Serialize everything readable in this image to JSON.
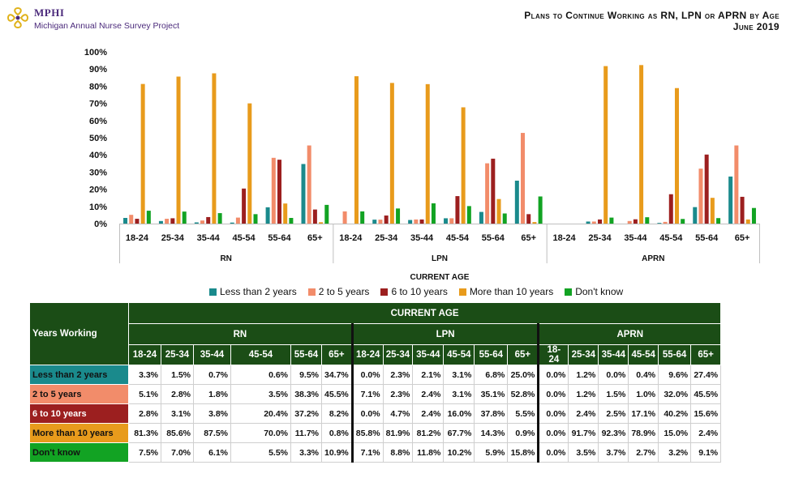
{
  "header": {
    "logo_name": "MPHI",
    "logo_subtitle": "Michigan Annual Nurse Survey Project",
    "title_line1": "Plans to Continue Working as RN, LPN or APRN by Age",
    "title_line2": "June 2019"
  },
  "colors": {
    "series": [
      "#1a8a8c",
      "#f28c6a",
      "#9c1f1f",
      "#e89b1c",
      "#12a323"
    ],
    "table_header_bg": "#1b4d16",
    "gridline": "#bfbfbf"
  },
  "chart_data": {
    "type": "bar",
    "xlabel": "CURRENT AGE",
    "ylabel": "",
    "ylim": [
      0,
      100
    ],
    "yticks": [
      "0%",
      "10%",
      "20%",
      "30%",
      "40%",
      "50%",
      "60%",
      "70%",
      "80%",
      "90%",
      "100%"
    ],
    "grid": false,
    "legend_position": "bottom",
    "groups": [
      {
        "name": "RN",
        "categories": [
          "18-24",
          "25-34",
          "35-44",
          "45-54",
          "55-64",
          "65+"
        ]
      },
      {
        "name": "LPN",
        "categories": [
          "18-24",
          "25-34",
          "35-44",
          "45-54",
          "55-64",
          "65+"
        ]
      },
      {
        "name": "APRN",
        "categories": [
          "18-24",
          "25-34",
          "35-44",
          "45-54",
          "55-64",
          "65+"
        ]
      }
    ],
    "series": [
      {
        "name": "Less than 2 years",
        "values": [
          [
            3.3,
            1.5,
            0.7,
            0.6,
            9.5,
            34.7
          ],
          [
            0.0,
            2.3,
            2.1,
            3.1,
            6.8,
            25.0
          ],
          [
            0.0,
            1.2,
            0.0,
            0.4,
            9.6,
            27.4
          ]
        ]
      },
      {
        "name": "2 to 5 years",
        "values": [
          [
            5.1,
            2.8,
            1.8,
            3.5,
            38.3,
            45.5
          ],
          [
            7.1,
            2.3,
            2.4,
            3.1,
            35.1,
            52.8
          ],
          [
            0.0,
            1.2,
            1.5,
            1.0,
            32.0,
            45.5
          ]
        ]
      },
      {
        "name": "6 to 10 years",
        "values": [
          [
            2.8,
            3.1,
            3.8,
            20.4,
            37.2,
            8.2
          ],
          [
            0.0,
            4.7,
            2.4,
            16.0,
            37.8,
            5.5
          ],
          [
            0.0,
            2.4,
            2.5,
            17.1,
            40.2,
            15.6
          ]
        ]
      },
      {
        "name": "More than 10 years",
        "values": [
          [
            81.3,
            85.6,
            87.5,
            70.0,
            11.7,
            0.8
          ],
          [
            85.8,
            81.9,
            81.2,
            67.7,
            14.3,
            0.9
          ],
          [
            0.0,
            91.7,
            92.3,
            78.9,
            15.0,
            2.4
          ]
        ]
      },
      {
        "name": "Don't know",
        "values": [
          [
            7.5,
            7.0,
            6.1,
            5.5,
            3.3,
            10.9
          ],
          [
            7.1,
            8.8,
            11.8,
            10.2,
            5.9,
            15.8
          ],
          [
            0.0,
            3.5,
            3.7,
            2.7,
            3.2,
            9.1
          ]
        ]
      }
    ]
  },
  "table": {
    "corner_label": "Years Working",
    "top_header": "CURRENT AGE",
    "groups": [
      "RN",
      "LPN",
      "APRN"
    ],
    "ages": [
      "18-24",
      "25-34",
      "35-44",
      "45-54",
      "55-64",
      "65+"
    ],
    "rows": [
      {
        "label": "Less than 2 years",
        "color": "#1a8a8c",
        "text_color": "#111111",
        "values": [
          "3.3%",
          "1.5%",
          "0.7%",
          "0.6%",
          "9.5%",
          "34.7%",
          "0.0%",
          "2.3%",
          "2.1%",
          "3.1%",
          "6.8%",
          "25.0%",
          "0.0%",
          "1.2%",
          "0.0%",
          "0.4%",
          "9.6%",
          "27.4%"
        ]
      },
      {
        "label": "2 to 5 years",
        "color": "#f28c6a",
        "text_color": "#111111",
        "values": [
          "5.1%",
          "2.8%",
          "1.8%",
          "3.5%",
          "38.3%",
          "45.5%",
          "7.1%",
          "2.3%",
          "2.4%",
          "3.1%",
          "35.1%",
          "52.8%",
          "0.0%",
          "1.2%",
          "1.5%",
          "1.0%",
          "32.0%",
          "45.5%"
        ]
      },
      {
        "label": "6 to 10 years",
        "color": "#9c1f1f",
        "text_color": "#ffffff",
        "values": [
          "2.8%",
          "3.1%",
          "3.8%",
          "20.4%",
          "37.2%",
          "8.2%",
          "0.0%",
          "4.7%",
          "2.4%",
          "16.0%",
          "37.8%",
          "5.5%",
          "0.0%",
          "2.4%",
          "2.5%",
          "17.1%",
          "40.2%",
          "15.6%"
        ]
      },
      {
        "label": "More than 10 years",
        "color": "#e89b1c",
        "text_color": "#111111",
        "values": [
          "81.3%",
          "85.6%",
          "87.5%",
          "70.0%",
          "11.7%",
          "0.8%",
          "85.8%",
          "81.9%",
          "81.2%",
          "67.7%",
          "14.3%",
          "0.9%",
          "0.0%",
          "91.7%",
          "92.3%",
          "78.9%",
          "15.0%",
          "2.4%"
        ]
      },
      {
        "label": "Don't know",
        "color": "#12a323",
        "text_color": "#111111",
        "values": [
          "7.5%",
          "7.0%",
          "6.1%",
          "5.5%",
          "3.3%",
          "10.9%",
          "7.1%",
          "8.8%",
          "11.8%",
          "10.2%",
          "5.9%",
          "15.8%",
          "0.0%",
          "3.5%",
          "3.7%",
          "2.7%",
          "3.2%",
          "9.1%"
        ]
      }
    ]
  }
}
